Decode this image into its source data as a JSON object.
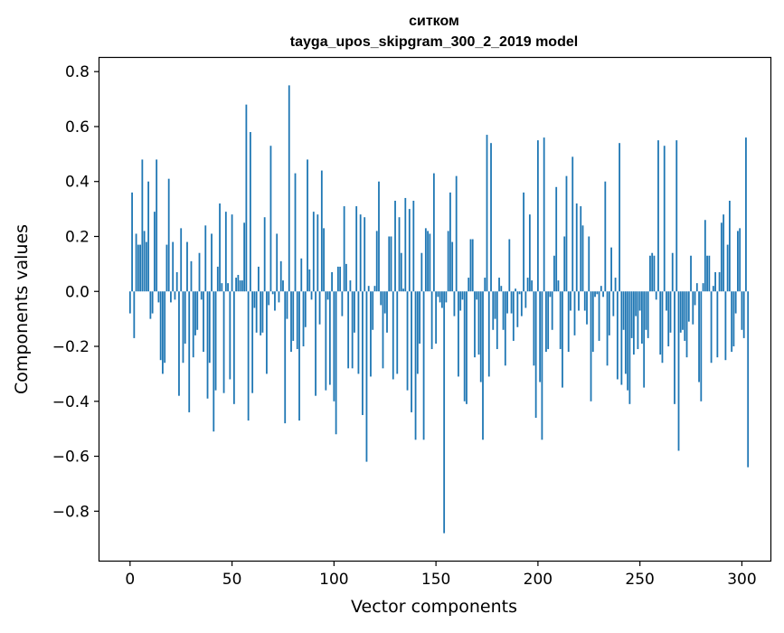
{
  "chart_data": {
    "type": "bar",
    "title": "ситком",
    "subtitle": "tayga_upos_skipgram_300_2_2019 model",
    "xlabel": "Vector components",
    "ylabel": "Components values",
    "xlim": [
      -15,
      314
    ],
    "ylim": [
      -0.98,
      0.85
    ],
    "xticks": [
      0,
      50,
      100,
      150,
      200,
      250,
      300
    ],
    "yticks": [
      -0.8,
      -0.6,
      -0.4,
      -0.2,
      0.0,
      0.2,
      0.4,
      0.6,
      0.8
    ],
    "xtick_labels": [
      "0",
      "50",
      "100",
      "150",
      "200",
      "250",
      "300"
    ],
    "ytick_labels": [
      "−0.8",
      "−0.6",
      "−0.4",
      "−0.2",
      "0.0",
      "0.2",
      "0.4",
      "0.6",
      "0.8"
    ],
    "bar_color": "#1f77b4",
    "grid": false,
    "values": [
      -0.08,
      0.36,
      -0.17,
      0.21,
      0.17,
      0.17,
      0.48,
      0.22,
      0.18,
      0.4,
      -0.1,
      -0.08,
      0.29,
      0.48,
      -0.04,
      -0.25,
      -0.3,
      -0.26,
      0.17,
      0.41,
      -0.04,
      0.18,
      -0.03,
      0.07,
      -0.38,
      0.23,
      -0.26,
      -0.19,
      0.18,
      -0.44,
      0.11,
      -0.24,
      -0.16,
      -0.14,
      0.14,
      -0.03,
      -0.22,
      0.24,
      -0.39,
      -0.26,
      0.21,
      -0.51,
      -0.36,
      0.09,
      0.32,
      0.03,
      -0.37,
      0.29,
      0.03,
      -0.32,
      0.28,
      -0.41,
      0.05,
      0.06,
      0.04,
      0.04,
      0.25,
      0.68,
      -0.47,
      0.58,
      -0.37,
      -0.06,
      -0.15,
      0.09,
      -0.16,
      -0.15,
      0.27,
      -0.3,
      -0.05,
      0.53,
      -0.01,
      -0.07,
      0.21,
      -0.04,
      0.11,
      0.04,
      -0.48,
      -0.1,
      0.75,
      -0.22,
      -0.18,
      0.43,
      -0.21,
      -0.47,
      0.12,
      -0.2,
      -0.13,
      0.48,
      0.08,
      -0.03,
      0.29,
      -0.38,
      0.28,
      -0.12,
      0.44,
      0.23,
      -0.36,
      -0.03,
      -0.34,
      0.07,
      -0.4,
      -0.52,
      0.09,
      0.09,
      -0.09,
      0.31,
      0.1,
      -0.28,
      0.04,
      -0.28,
      -0.15,
      0.31,
      -0.3,
      0.28,
      -0.45,
      0.27,
      -0.62,
      0.02,
      -0.31,
      -0.14,
      0.02,
      0.22,
      0.4,
      -0.05,
      -0.28,
      -0.08,
      -0.15,
      0.2,
      0.2,
      -0.32,
      0.33,
      -0.3,
      0.27,
      0.14,
      0.01,
      0.34,
      -0.36,
      0.3,
      -0.44,
      0.33,
      -0.54,
      -0.3,
      -0.19,
      0.14,
      -0.54,
      0.23,
      0.22,
      0.21,
      -0.21,
      0.43,
      -0.19,
      -0.02,
      -0.04,
      -0.06,
      -0.88,
      -0.04,
      0.22,
      0.36,
      0.18,
      -0.09,
      0.42,
      -0.31,
      -0.07,
      -0.03,
      -0.4,
      -0.41,
      0.05,
      0.19,
      0.19,
      -0.24,
      -0.03,
      -0.23,
      -0.33,
      -0.54,
      0.05,
      0.57,
      -0.31,
      0.54,
      -0.14,
      -0.1,
      -0.21,
      0.05,
      0.02,
      -0.14,
      -0.27,
      -0.08,
      0.19,
      -0.08,
      -0.18,
      0.01,
      -0.13,
      -0.01,
      -0.09,
      0.36,
      -0.06,
      0.05,
      0.28,
      0.04,
      -0.27,
      -0.46,
      0.55,
      -0.33,
      -0.54,
      0.56,
      -0.22,
      -0.21,
      -0.02,
      -0.14,
      0.13,
      0.38,
      0.04,
      -0.21,
      -0.35,
      0.2,
      0.42,
      -0.22,
      -0.07,
      0.49,
      -0.16,
      0.32,
      -0.07,
      0.31,
      0.24,
      -0.07,
      -0.12,
      0.2,
      -0.4,
      -0.22,
      -0.02,
      -0.01,
      -0.18,
      0.02,
      -0.02,
      0.4,
      -0.27,
      -0.16,
      0.16,
      -0.09,
      0.05,
      -0.32,
      0.54,
      -0.34,
      -0.14,
      -0.3,
      -0.36,
      -0.41,
      -0.17,
      -0.23,
      -0.09,
      -0.21,
      -0.07,
      -0.19,
      -0.35,
      -0.14,
      -0.17,
      0.13,
      0.14,
      0.13,
      -0.03,
      0.55,
      -0.23,
      -0.26,
      0.53,
      -0.07,
      -0.2,
      -0.15,
      0.14,
      -0.41,
      0.55,
      -0.58,
      -0.15,
      -0.14,
      -0.18,
      -0.24,
      -0.11,
      0.13,
      -0.12,
      -0.05,
      0.03,
      -0.33,
      -0.4,
      0.03,
      0.26,
      0.13,
      0.13,
      -0.26,
      0.02,
      0.07,
      -0.24,
      0.07,
      0.25,
      0.28,
      -0.25,
      0.17,
      0.33,
      -0.22,
      -0.2,
      -0.08,
      0.22,
      0.23,
      -0.14,
      -0.17,
      0.56,
      -0.64
    ]
  }
}
